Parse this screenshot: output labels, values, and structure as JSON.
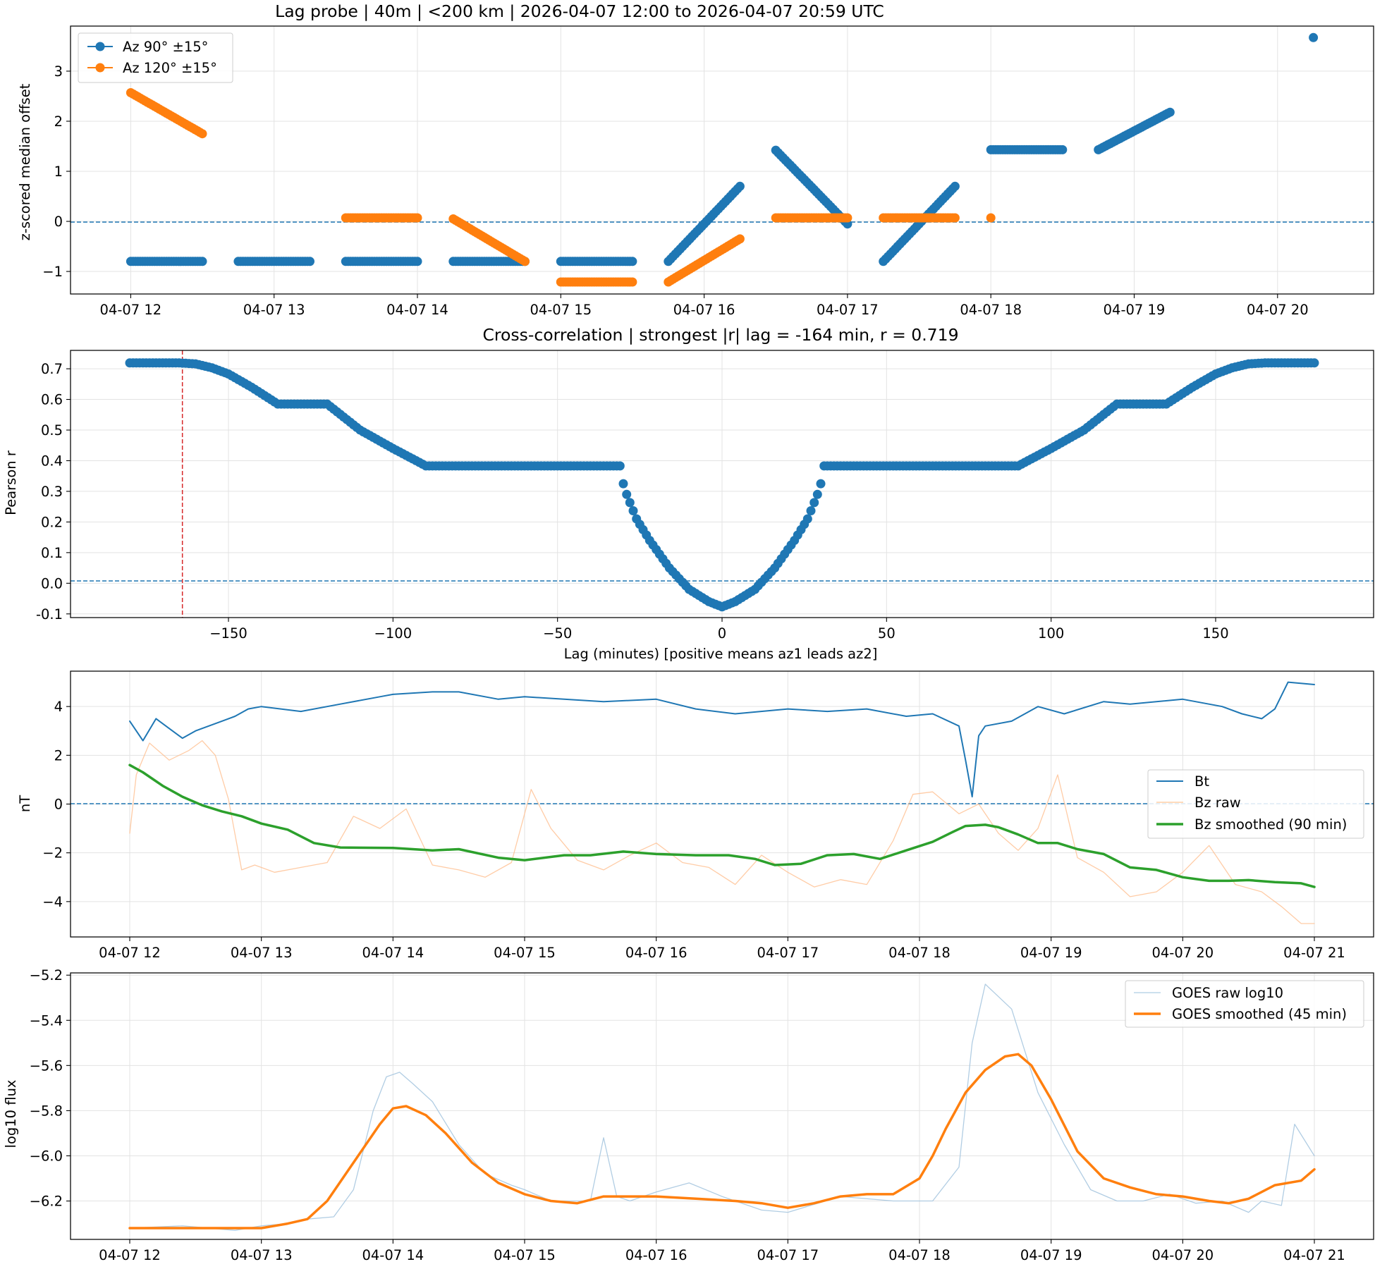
{
  "chart_data": [
    {
      "type": "scatter",
      "title": "Lag probe | 40m | <200 km | 2026-04-07 12:00 to 2026-04-07 20:59 UTC",
      "xlabel": "",
      "ylabel": "z-scored median offset",
      "x_tick_labels": [
        "04-07 12",
        "04-07 13",
        "04-07 14",
        "04-07 15",
        "04-07 16",
        "04-07 17",
        "04-07 18",
        "04-07 19",
        "04-07 20"
      ],
      "y_tick_labels": [
        "−1",
        "0",
        "1",
        "2",
        "3"
      ],
      "xlim": [
        11.58,
        20.67
      ],
      "ylim": [
        -1.45,
        3.9
      ],
      "grid": true,
      "legend": "upper-left",
      "reference_line": 0,
      "series": [
        {
          "name": "Az 90° ±15°",
          "color": "#1f77b4",
          "segments": [
            {
              "x0": 12.0,
              "x1": 12.5,
              "y0": -0.8,
              "y1": -0.8
            },
            {
              "x0": 12.75,
              "x1": 13.25,
              "y0": -0.8,
              "y1": -0.8
            },
            {
              "x0": 13.5,
              "x1": 14.0,
              "y0": -0.8,
              "y1": -0.8
            },
            {
              "x0": 14.25,
              "x1": 14.75,
              "y0": -0.8,
              "y1": -0.8
            },
            {
              "x0": 15.0,
              "x1": 15.5,
              "y0": -0.8,
              "y1": -0.8
            },
            {
              "x0": 15.75,
              "x1": 16.25,
              "y0": -0.8,
              "y1": 0.7
            },
            {
              "x0": 16.5,
              "x1": 17.0,
              "y0": 1.42,
              "y1": -0.05
            },
            {
              "x0": 17.25,
              "x1": 17.75,
              "y0": -0.8,
              "y1": 0.7
            },
            {
              "x0": 18.0,
              "x1": 18.5,
              "y0": 1.43,
              "y1": 1.43
            },
            {
              "x0": 18.75,
              "x1": 19.25,
              "y0": 1.43,
              "y1": 2.18
            }
          ],
          "points": [
            {
              "x": 20.25,
              "y": 3.67
            }
          ]
        },
        {
          "name": "Az 120° ±15°",
          "color": "#ff7f0e",
          "segments": [
            {
              "x0": 12.0,
              "x1": 12.5,
              "y0": 2.57,
              "y1": 1.75
            },
            {
              "x0": 13.5,
              "x1": 14.0,
              "y0": 0.07,
              "y1": 0.07
            },
            {
              "x0": 14.25,
              "x1": 14.75,
              "y0": 0.05,
              "y1": -0.8
            },
            {
              "x0": 15.0,
              "x1": 15.5,
              "y0": -1.21,
              "y1": -1.21
            },
            {
              "x0": 15.75,
              "x1": 16.25,
              "y0": -1.21,
              "y1": -0.35
            },
            {
              "x0": 16.5,
              "x1": 17.0,
              "y0": 0.07,
              "y1": 0.07
            },
            {
              "x0": 17.25,
              "x1": 17.75,
              "y0": 0.07,
              "y1": 0.07
            }
          ],
          "points": [
            {
              "x": 18.0,
              "y": 0.07
            }
          ]
        }
      ]
    },
    {
      "type": "scatter",
      "title": "Cross-correlation | strongest |r| lag = -164 min, r = 0.719",
      "xlabel": "Lag (minutes) [positive means az1 leads az2]",
      "ylabel": "Pearson r",
      "x_tick_labels": [
        "−150",
        "−100",
        "−50",
        "0",
        "50",
        "100",
        "150"
      ],
      "y_tick_labels": [
        "-0.1",
        "0.0",
        "0.1",
        "0.2",
        "0.3",
        "0.4",
        "0.5",
        "0.6",
        "0.7"
      ],
      "xlim": [
        -198,
        198
      ],
      "ylim": [
        -0.112,
        0.76
      ],
      "grid": true,
      "reference_line": 0,
      "marked_lag": -164,
      "color": "#1f77b4",
      "profile": [
        [
          0,
          -0.077
        ],
        [
          4,
          -0.06
        ],
        [
          10,
          -0.02
        ],
        [
          16,
          0.05
        ],
        [
          22,
          0.14
        ],
        [
          26,
          0.21
        ],
        [
          29,
          0.29
        ],
        [
          30,
          0.325
        ],
        [
          30.5,
          0.35
        ],
        [
          31,
          0.383
        ],
        [
          90,
          0.383
        ],
        [
          100,
          0.44
        ],
        [
          110,
          0.5
        ],
        [
          120,
          0.585
        ],
        [
          135,
          0.585
        ],
        [
          143,
          0.64
        ],
        [
          150,
          0.683
        ],
        [
          155,
          0.703
        ],
        [
          160,
          0.716
        ],
        [
          165,
          0.719
        ],
        [
          180,
          0.719
        ]
      ]
    },
    {
      "type": "line",
      "title": "",
      "xlabel": "",
      "ylabel": "nT",
      "x_tick_labels": [
        "04-07 12",
        "04-07 13",
        "04-07 14",
        "04-07 15",
        "04-07 16",
        "04-07 17",
        "04-07 18",
        "04-07 19",
        "04-07 20",
        "04-07 21"
      ],
      "y_tick_labels": [
        "−4",
        "−2",
        "0",
        "2",
        "4"
      ],
      "xlim": [
        11.55,
        21.45
      ],
      "ylim": [
        -5.45,
        5.45
      ],
      "grid": true,
      "legend": "center-right",
      "reference_line": 0,
      "series": [
        {
          "name": "Bt",
          "color": "#1f77b4",
          "x": [
            12.0,
            12.1,
            12.2,
            12.3,
            12.4,
            12.5,
            12.6,
            12.7,
            12.8,
            12.9,
            13.0,
            13.3,
            13.6,
            13.9,
            14.0,
            14.3,
            14.5,
            14.8,
            15.0,
            15.3,
            15.6,
            16.0,
            16.3,
            16.6,
            17.0,
            17.3,
            17.6,
            17.9,
            18.1,
            18.3,
            18.35,
            18.4,
            18.45,
            18.5,
            18.7,
            18.9,
            19.1,
            19.4,
            19.6,
            20.0,
            20.3,
            20.45,
            20.6,
            20.7,
            20.8,
            21.0
          ],
          "values": [
            3.4,
            2.6,
            3.5,
            3.1,
            2.7,
            3.0,
            3.2,
            3.4,
            3.6,
            3.9,
            4.0,
            3.8,
            4.1,
            4.4,
            4.5,
            4.6,
            4.6,
            4.3,
            4.4,
            4.3,
            4.2,
            4.3,
            3.9,
            3.7,
            3.9,
            3.8,
            3.9,
            3.6,
            3.7,
            3.2,
            1.8,
            0.3,
            2.8,
            3.2,
            3.4,
            4.0,
            3.7,
            4.2,
            4.1,
            4.3,
            4.0,
            3.7,
            3.5,
            3.9,
            5.0,
            4.9
          ]
        },
        {
          "name": "Bz raw",
          "color": "#ffbb88",
          "x": [
            12.0,
            12.05,
            12.15,
            12.3,
            12.45,
            12.55,
            12.65,
            12.75,
            12.85,
            12.95,
            13.1,
            13.3,
            13.5,
            13.7,
            13.9,
            14.1,
            14.3,
            14.5,
            14.7,
            14.9,
            15.05,
            15.2,
            15.4,
            15.6,
            15.8,
            16.0,
            16.2,
            16.4,
            16.6,
            16.8,
            17.0,
            17.2,
            17.4,
            17.6,
            17.8,
            17.95,
            18.1,
            18.3,
            18.45,
            18.6,
            18.75,
            18.9,
            19.05,
            19.2,
            19.4,
            19.6,
            19.8,
            20.0,
            20.2,
            20.4,
            20.6,
            20.75,
            20.9,
            21.0
          ],
          "values": [
            -1.2,
            1.2,
            2.5,
            1.8,
            2.2,
            2.6,
            2.0,
            0.2,
            -2.7,
            -2.5,
            -2.8,
            -2.6,
            -2.4,
            -0.5,
            -1.0,
            -0.2,
            -2.5,
            -2.7,
            -3.0,
            -2.4,
            0.6,
            -1.0,
            -2.3,
            -2.7,
            -2.1,
            -1.6,
            -2.4,
            -2.6,
            -3.3,
            -2.1,
            -2.8,
            -3.4,
            -3.1,
            -3.3,
            -1.5,
            0.4,
            0.5,
            -0.4,
            0.0,
            -1.2,
            -1.9,
            -1.0,
            1.2,
            -2.2,
            -2.8,
            -3.8,
            -3.6,
            -2.8,
            -1.7,
            -3.3,
            -3.6,
            -4.2,
            -4.9,
            -4.9
          ]
        },
        {
          "name": "Bz smoothed (90 min)",
          "color": "#2ca02c",
          "x": [
            12.0,
            12.1,
            12.25,
            12.4,
            12.55,
            12.7,
            12.85,
            13.0,
            13.2,
            13.4,
            13.6,
            14.0,
            14.3,
            14.5,
            14.8,
            15.0,
            15.3,
            15.5,
            15.75,
            16.0,
            16.3,
            16.55,
            16.75,
            16.9,
            17.1,
            17.3,
            17.5,
            17.7,
            17.9,
            18.1,
            18.25,
            18.35,
            18.5,
            18.6,
            18.75,
            18.9,
            19.05,
            19.2,
            19.4,
            19.6,
            19.8,
            20.0,
            20.2,
            20.35,
            20.5,
            20.7,
            20.9,
            21.0
          ],
          "values": [
            1.6,
            1.3,
            0.75,
            0.3,
            -0.05,
            -0.3,
            -0.5,
            -0.8,
            -1.05,
            -1.6,
            -1.78,
            -1.8,
            -1.9,
            -1.85,
            -2.2,
            -2.3,
            -2.1,
            -2.1,
            -1.95,
            -2.05,
            -2.1,
            -2.1,
            -2.25,
            -2.5,
            -2.45,
            -2.1,
            -2.05,
            -2.25,
            -1.9,
            -1.55,
            -1.15,
            -0.9,
            -0.85,
            -0.95,
            -1.25,
            -1.6,
            -1.6,
            -1.85,
            -2.05,
            -2.6,
            -2.7,
            -3.0,
            -3.15,
            -3.15,
            -3.12,
            -3.2,
            -3.25,
            -3.4
          ]
        }
      ]
    },
    {
      "type": "line",
      "title": "",
      "xlabel": "",
      "ylabel": "log10 flux",
      "x_tick_labels": [
        "04-07 12",
        "04-07 13",
        "04-07 14",
        "04-07 15",
        "04-07 16",
        "04-07 17",
        "04-07 18",
        "04-07 19",
        "04-07 20",
        "04-07 21"
      ],
      "y_tick_labels": [
        "−6.2",
        "−6.0",
        "−5.8",
        "−5.6",
        "−5.4",
        "−5.2"
      ],
      "xlim": [
        11.55,
        21.45
      ],
      "ylim": [
        -6.37,
        -5.19
      ],
      "grid": true,
      "legend": "upper-right",
      "series": [
        {
          "name": "GOES raw log10",
          "color": "#a8c8e0",
          "x": [
            12.0,
            12.4,
            12.8,
            13.0,
            13.2,
            13.35,
            13.55,
            13.7,
            13.85,
            13.95,
            14.05,
            14.15,
            14.3,
            14.5,
            14.7,
            14.9,
            15.0,
            15.2,
            15.5,
            15.6,
            15.7,
            15.8,
            16.0,
            16.25,
            16.5,
            16.8,
            17.0,
            17.4,
            17.8,
            18.1,
            18.3,
            18.4,
            18.5,
            18.7,
            18.9,
            19.1,
            19.3,
            19.5,
            19.7,
            19.9,
            20.1,
            20.3,
            20.5,
            20.6,
            20.75,
            20.85,
            21.0
          ],
          "values": [
            -6.32,
            -6.31,
            -6.33,
            -6.31,
            -6.3,
            -6.28,
            -6.27,
            -6.15,
            -5.8,
            -5.65,
            -5.63,
            -5.68,
            -5.76,
            -5.95,
            -6.08,
            -6.13,
            -6.15,
            -6.2,
            -6.2,
            -5.92,
            -6.18,
            -6.2,
            -6.16,
            -6.12,
            -6.18,
            -6.24,
            -6.25,
            -6.18,
            -6.2,
            -6.2,
            -6.05,
            -5.5,
            -5.24,
            -5.35,
            -5.72,
            -5.95,
            -6.15,
            -6.2,
            -6.2,
            -6.17,
            -6.21,
            -6.2,
            -6.25,
            -6.2,
            -6.22,
            -5.86,
            -6.0
          ]
        },
        {
          "name": "GOES smoothed (45 min)",
          "color": "#ff7f0e",
          "x": [
            12.0,
            12.5,
            13.0,
            13.2,
            13.35,
            13.5,
            13.7,
            13.9,
            14.0,
            14.1,
            14.25,
            14.4,
            14.6,
            14.8,
            15.0,
            15.2,
            15.4,
            15.6,
            15.8,
            16.0,
            16.3,
            16.6,
            16.8,
            17.0,
            17.2,
            17.4,
            17.6,
            17.8,
            18.0,
            18.1,
            18.2,
            18.35,
            18.5,
            18.65,
            18.75,
            18.85,
            19.0,
            19.2,
            19.4,
            19.6,
            19.8,
            20.0,
            20.2,
            20.35,
            20.5,
            20.7,
            20.9,
            21.0
          ],
          "values": [
            -6.32,
            -6.32,
            -6.32,
            -6.3,
            -6.28,
            -6.2,
            -6.03,
            -5.86,
            -5.79,
            -5.78,
            -5.82,
            -5.9,
            -6.03,
            -6.12,
            -6.17,
            -6.2,
            -6.21,
            -6.18,
            -6.18,
            -6.18,
            -6.19,
            -6.2,
            -6.21,
            -6.23,
            -6.21,
            -6.18,
            -6.17,
            -6.17,
            -6.1,
            -6.0,
            -5.88,
            -5.72,
            -5.62,
            -5.56,
            -5.55,
            -5.6,
            -5.75,
            -5.98,
            -6.1,
            -6.14,
            -6.17,
            -6.18,
            -6.2,
            -6.21,
            -6.19,
            -6.13,
            -6.11,
            -6.06
          ]
        }
      ]
    }
  ]
}
